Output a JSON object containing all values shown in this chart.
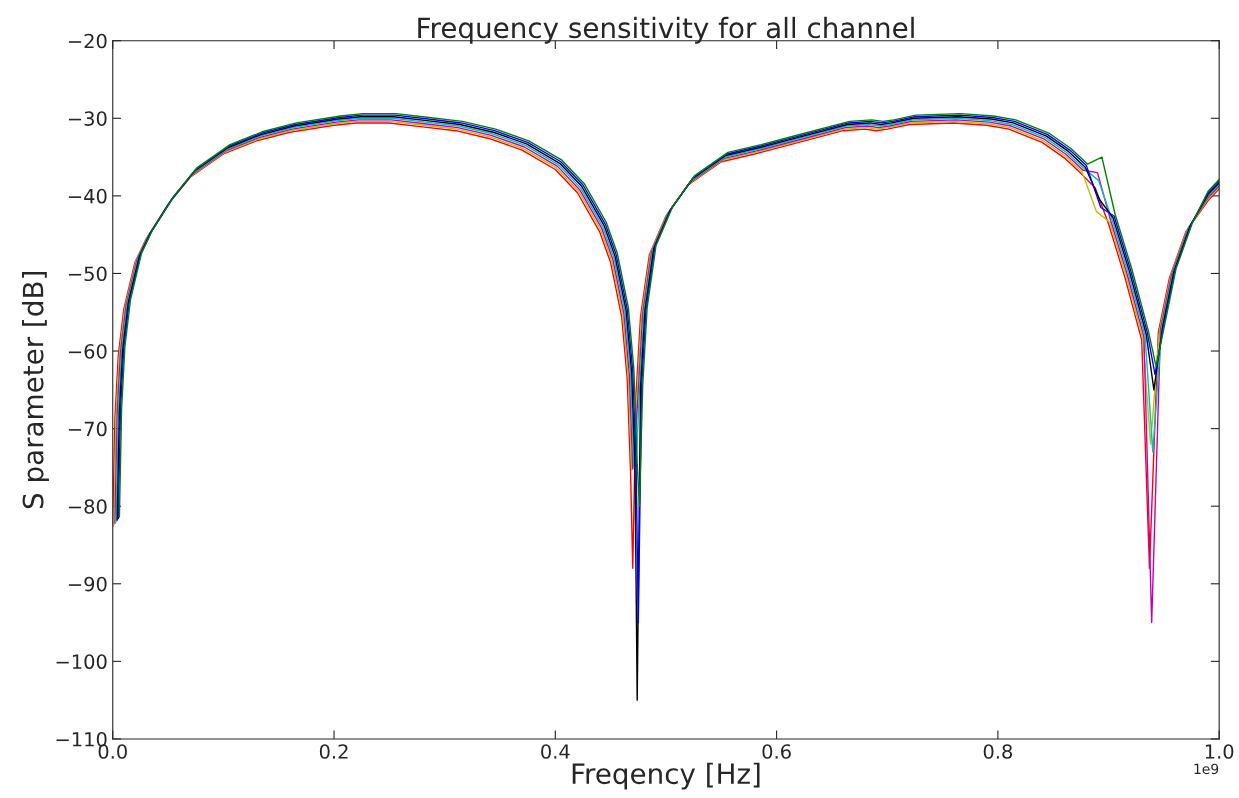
{
  "chart_data": {
    "type": "line",
    "title": "Frequency sensitivity for all channel",
    "xlabel": "Freqency [Hz]",
    "ylabel": "S parameter [dB]",
    "annotations": [
      "1e9"
    ],
    "series": [
      {
        "color": "#ff0000",
        "x": [
          0,
          0.002,
          0.005,
          0.01,
          0.02,
          0.03,
          0.05,
          0.07,
          0.1,
          0.13,
          0.16,
          0.2,
          0.22,
          0.25,
          0.28,
          0.31,
          0.34,
          0.37,
          0.4,
          0.42,
          0.44,
          0.45,
          0.46,
          0.465,
          0.468,
          0.47,
          0.473,
          0.477,
          0.485,
          0.5,
          0.52,
          0.55,
          0.58,
          0.62,
          0.66,
          0.68,
          0.69,
          0.7,
          0.72,
          0.76,
          0.79,
          0.81,
          0.84,
          0.86,
          0.875,
          0.888,
          0.9,
          0.915,
          0.93,
          0.937,
          0.945,
          0.955,
          0.97,
          0.99,
          1.0
        ],
        "values": [
          -82.6,
          -68.6,
          -60.6,
          -54.6,
          -48.6,
          -45.6,
          -41.1,
          -37.6,
          -34.6,
          -32.9,
          -31.8,
          -30.9,
          -30.6,
          -30.6,
          -31.1,
          -31.6,
          -32.6,
          -34.1,
          -36.6,
          -39.6,
          -44.6,
          -48.6,
          -55.6,
          -63.6,
          -75.6,
          -88,
          -65.6,
          -55.6,
          -47.6,
          -42.6,
          -38.6,
          -35.6,
          -34.6,
          -33.1,
          -31.6,
          -31.4,
          -31.6,
          -31.4,
          -30.8,
          -30.6,
          -30.9,
          -31.4,
          -33.1,
          -35.1,
          -37.1,
          -39,
          -43.6,
          -50.6,
          -58.6,
          -88,
          -57.6,
          -50.6,
          -44.6,
          -40.6,
          -39.1
        ]
      },
      {
        "color": "#bfbf00",
        "x": [
          0.001,
          0.003,
          0.006,
          0.011,
          0.021,
          0.031,
          0.051,
          0.071,
          0.101,
          0.131,
          0.161,
          0.201,
          0.221,
          0.251,
          0.281,
          0.311,
          0.341,
          0.371,
          0.401,
          0.421,
          0.441,
          0.451,
          0.461,
          0.466,
          0.469,
          0.471,
          0.474,
          0.478,
          0.486,
          0.501,
          0.521,
          0.551,
          0.581,
          0.621,
          0.661,
          0.681,
          0.691,
          0.701,
          0.721,
          0.761,
          0.791,
          0.811,
          0.841,
          0.861,
          0.876,
          0.889,
          0.901,
          0.916,
          0.931,
          0.938,
          0.946,
          0.956,
          0.971,
          0.99,
          1.0
        ],
        "values": [
          -82.4,
          -68.4,
          -60.4,
          -54.4,
          -48.4,
          -45.4,
          -40.9,
          -37.4,
          -34.4,
          -32.7,
          -31.6,
          -30.7,
          -30.4,
          -30.4,
          -30.9,
          -31.4,
          -32.4,
          -33.9,
          -36.4,
          -39.4,
          -44.4,
          -48.4,
          -55.4,
          -63.4,
          -75.4,
          -70,
          -65.4,
          -55.4,
          -47.4,
          -42.4,
          -38.4,
          -35.4,
          -34.4,
          -32.9,
          -31.4,
          -31.2,
          -31.4,
          -31.2,
          -30.6,
          -30.4,
          -30.7,
          -31.2,
          -32.9,
          -34.9,
          -36.9,
          -42,
          -43.4,
          -50.4,
          -58.4,
          -72,
          -57.4,
          -50.4,
          -44.4,
          -40.4,
          -38.9
        ]
      },
      {
        "color": "#bf00bf",
        "x": [
          0.002,
          0.004,
          0.007,
          0.012,
          0.022,
          0.032,
          0.052,
          0.072,
          0.102,
          0.132,
          0.162,
          0.202,
          0.222,
          0.252,
          0.282,
          0.312,
          0.342,
          0.372,
          0.402,
          0.422,
          0.442,
          0.452,
          0.462,
          0.467,
          0.47,
          0.472,
          0.475,
          0.479,
          0.487,
          0.502,
          0.522,
          0.552,
          0.582,
          0.622,
          0.662,
          0.682,
          0.692,
          0.702,
          0.722,
          0.762,
          0.792,
          0.812,
          0.842,
          0.862,
          0.877,
          0.89,
          0.902,
          0.917,
          0.932,
          0.939,
          0.947,
          0.957,
          0.972,
          0.99,
          1.0
        ],
        "values": [
          -82.2,
          -68.2,
          -60.2,
          -54.2,
          -48.2,
          -45.2,
          -40.7,
          -37.2,
          -34.2,
          -32.5,
          -31.4,
          -30.5,
          -30.2,
          -30.2,
          -30.7,
          -31.2,
          -32.2,
          -33.7,
          -36.2,
          -39.2,
          -44.2,
          -48.2,
          -55.2,
          -63.2,
          -75.2,
          -72,
          -65.2,
          -55.2,
          -47.2,
          -42.2,
          -38.2,
          -35.2,
          -34.2,
          -32.7,
          -31.2,
          -31,
          -31.2,
          -31,
          -30.4,
          -30.2,
          -30.5,
          -31,
          -32.7,
          -34.7,
          -36.7,
          -37,
          -43.2,
          -50.2,
          -58.2,
          -95,
          -57.2,
          -50.2,
          -44.2,
          -40.2,
          -38.7
        ]
      },
      {
        "color": "#00bfbf",
        "x": [
          0.003,
          0.005,
          0.008,
          0.013,
          0.023,
          0.033,
          0.053,
          0.073,
          0.103,
          0.133,
          0.163,
          0.203,
          0.223,
          0.253,
          0.283,
          0.313,
          0.343,
          0.373,
          0.403,
          0.423,
          0.443,
          0.453,
          0.463,
          0.468,
          0.471,
          0.473,
          0.476,
          0.48,
          0.488,
          0.503,
          0.523,
          0.553,
          0.583,
          0.623,
          0.663,
          0.683,
          0.693,
          0.703,
          0.723,
          0.763,
          0.793,
          0.813,
          0.843,
          0.863,
          0.878,
          0.891,
          0.903,
          0.918,
          0.933,
          0.94,
          0.948,
          0.958,
          0.973,
          0.99,
          1.0
        ],
        "values": [
          -82,
          -68,
          -60,
          -54,
          -48,
          -45,
          -40.5,
          -37,
          -34,
          -32.3,
          -31.2,
          -30.3,
          -30,
          -30,
          -30.5,
          -31,
          -32,
          -33.5,
          -36,
          -39,
          -44,
          -48,
          -55,
          -63,
          -75,
          -75,
          -65,
          -55,
          -47,
          -42,
          -38,
          -35,
          -34,
          -32.5,
          -31,
          -30.8,
          -31,
          -30.8,
          -30.2,
          -30,
          -30.3,
          -30.8,
          -32.5,
          -34.5,
          -36.5,
          -38,
          -43,
          -50,
          -58,
          -73,
          -57,
          -50,
          -44,
          -40,
          -38.5
        ]
      },
      {
        "color": "#000000",
        "x": [
          0.004,
          0.006,
          0.009,
          0.014,
          0.024,
          0.034,
          0.054,
          0.074,
          0.104,
          0.134,
          0.164,
          0.204,
          0.224,
          0.254,
          0.284,
          0.314,
          0.344,
          0.374,
          0.404,
          0.424,
          0.444,
          0.454,
          0.464,
          0.469,
          0.472,
          0.474,
          0.477,
          0.481,
          0.489,
          0.504,
          0.524,
          0.554,
          0.584,
          0.624,
          0.664,
          0.684,
          0.694,
          0.704,
          0.724,
          0.764,
          0.794,
          0.814,
          0.844,
          0.864,
          0.879,
          0.892,
          0.904,
          0.919,
          0.934,
          0.941,
          0.949,
          0.959,
          0.974,
          0.99,
          1.0
        ],
        "values": [
          -81.8,
          -67.8,
          -59.8,
          -53.8,
          -47.8,
          -44.8,
          -40.3,
          -36.8,
          -33.8,
          -32.1,
          -31,
          -30.1,
          -29.8,
          -29.8,
          -30.3,
          -30.8,
          -31.8,
          -33.3,
          -35.8,
          -38.8,
          -43.8,
          -47.8,
          -54.8,
          -62.8,
          -74.8,
          -105,
          -64.8,
          -54.8,
          -46.8,
          -41.8,
          -37.8,
          -34.8,
          -33.8,
          -32.3,
          -30.8,
          -30.6,
          -30.8,
          -30.6,
          -30,
          -29.8,
          -30.1,
          -30.6,
          -32.3,
          -34.3,
          -36.3,
          -40.5,
          -42.8,
          -49.8,
          -57.8,
          -65,
          -56.8,
          -49.8,
          -43.8,
          -39.8,
          -38.3
        ]
      },
      {
        "color": "#0000ff",
        "x": [
          0.005,
          0.007,
          0.01,
          0.015,
          0.025,
          0.035,
          0.055,
          0.075,
          0.105,
          0.135,
          0.165,
          0.205,
          0.225,
          0.255,
          0.285,
          0.315,
          0.345,
          0.375,
          0.405,
          0.425,
          0.445,
          0.455,
          0.465,
          0.47,
          0.473,
          0.475,
          0.478,
          0.482,
          0.49,
          0.505,
          0.525,
          0.555,
          0.585,
          0.625,
          0.665,
          0.685,
          0.695,
          0.705,
          0.725,
          0.765,
          0.795,
          0.815,
          0.845,
          0.865,
          0.88,
          0.893,
          0.905,
          0.92,
          0.935,
          0.942,
          0.95,
          0.96,
          0.975,
          0.99,
          1.0
        ],
        "values": [
          -81.6,
          -67.6,
          -59.6,
          -53.6,
          -47.6,
          -44.6,
          -40.1,
          -36.6,
          -33.6,
          -31.9,
          -30.8,
          -29.9,
          -29.6,
          -29.6,
          -30.1,
          -30.6,
          -31.6,
          -33.1,
          -35.6,
          -38.6,
          -43.6,
          -47.6,
          -54.6,
          -62.6,
          -74.6,
          -95,
          -64.6,
          -54.6,
          -46.6,
          -41.6,
          -37.6,
          -34.6,
          -33.6,
          -32.1,
          -30.6,
          -30.4,
          -30.6,
          -30.4,
          -29.8,
          -29.6,
          -29.9,
          -30.4,
          -32.1,
          -34.1,
          -36.1,
          -41.5,
          -42.6,
          -49.6,
          -57.6,
          -63,
          -56.6,
          -49.6,
          -43.6,
          -39.6,
          -38.1
        ]
      },
      {
        "color": "#008000",
        "x": [
          0.006,
          0.008,
          0.011,
          0.016,
          0.026,
          0.036,
          0.056,
          0.076,
          0.106,
          0.136,
          0.166,
          0.206,
          0.226,
          0.256,
          0.286,
          0.316,
          0.346,
          0.376,
          0.406,
          0.426,
          0.446,
          0.456,
          0.466,
          0.471,
          0.474,
          0.476,
          0.479,
          0.483,
          0.491,
          0.506,
          0.526,
          0.556,
          0.586,
          0.626,
          0.666,
          0.686,
          0.696,
          0.706,
          0.726,
          0.766,
          0.796,
          0.816,
          0.846,
          0.866,
          0.881,
          0.894,
          0.906,
          0.921,
          0.936,
          0.943,
          0.951,
          0.961,
          0.976,
          0.99,
          1.0
        ],
        "values": [
          -81.4,
          -67.4,
          -59.4,
          -53.4,
          -47.4,
          -44.4,
          -39.9,
          -36.4,
          -33.4,
          -31.7,
          -30.6,
          -29.7,
          -29.4,
          -29.4,
          -29.9,
          -30.4,
          -31.4,
          -32.9,
          -35.4,
          -38.4,
          -43.4,
          -47.4,
          -54.4,
          -62.4,
          -74.4,
          -80,
          -64.4,
          -54.4,
          -46.4,
          -41.4,
          -37.4,
          -34.4,
          -33.4,
          -31.9,
          -30.4,
          -30.2,
          -30.4,
          -30.2,
          -29.6,
          -29.4,
          -29.7,
          -30.2,
          -31.9,
          -33.9,
          -35.9,
          -35,
          -42.4,
          -49.4,
          -57.4,
          -62,
          -56.4,
          -49.4,
          -43.4,
          -39.4,
          -37.9
        ]
      }
    ],
    "xlim": [
      0,
      1.0
    ],
    "xticks": [
      {
        "value": 0,
        "label": "0.0"
      },
      0.2,
      0.4,
      0.6,
      0.8,
      {
        "value": 1.0,
        "label": "1.0"
      }
    ],
    "ylim": [
      -110,
      -20
    ],
    "yticks": [
      {
        "value": -110,
        "label": "−110"
      },
      {
        "value": -100,
        "label": "−100"
      },
      {
        "value": -90,
        "label": "−90"
      },
      {
        "value": -80,
        "label": "−80"
      },
      {
        "value": -70,
        "label": "−70"
      },
      {
        "value": -60,
        "label": "−60"
      },
      {
        "value": -50,
        "label": "−50"
      },
      {
        "value": -40,
        "label": "−40"
      },
      {
        "value": -30,
        "label": "−30"
      },
      {
        "value": -20,
        "label": "−20"
      }
    ],
    "grid": false,
    "legend": false
  }
}
